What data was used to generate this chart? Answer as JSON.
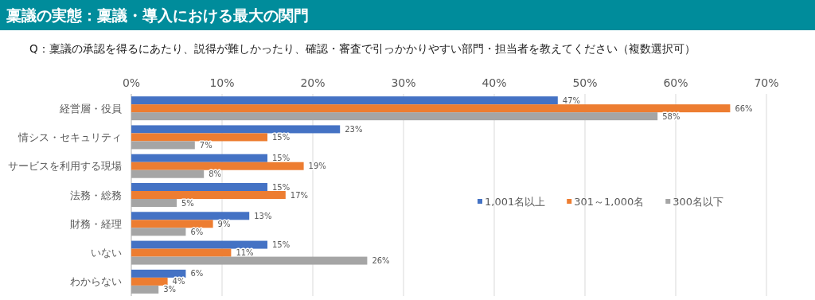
{
  "chart_data": {
    "type": "bar",
    "orientation": "horizontal",
    "title": "稟議の実態：稟議・導入における最大の関門",
    "subtitle": "Q：稟議の承認を得るにあたり、説得が難しかったり、確認・審査で引っかかりやすい部門・担当者を教えてください（複数選択可）",
    "categories": [
      "経営層・役員",
      "情シス・セキュリティ",
      "サービスを利用する現場",
      "法務・総務",
      "財務・経理",
      "いない",
      "わからない"
    ],
    "series": [
      {
        "name": "1,001名以上",
        "color": "#4472c4",
        "values": [
          47,
          23,
          15,
          15,
          13,
          15,
          6
        ],
        "value_labels": [
          "47%",
          "23%",
          "15%",
          "15%",
          "13%",
          "15%",
          "6%"
        ]
      },
      {
        "name": "301～1,000名",
        "color": "#ed7d31",
        "values": [
          66,
          15,
          19,
          17,
          9,
          11,
          4
        ],
        "value_labels": [
          "66%",
          "15%",
          "19%",
          "17%",
          "9%",
          "11%",
          "4%"
        ]
      },
      {
        "name": "300名以下",
        "color": "#a5a5a5",
        "values": [
          58,
          7,
          8,
          5,
          6,
          26,
          3
        ],
        "value_labels": [
          "58%",
          "7%",
          "8%",
          "5%",
          "6%",
          "26%",
          "3%"
        ]
      }
    ],
    "xlim": [
      0,
      70
    ],
    "xticks": [
      {
        "value": 0,
        "label": "0%"
      },
      {
        "value": 10,
        "label": "10%"
      },
      {
        "value": 20,
        "label": "20%"
      },
      {
        "value": 30,
        "label": "30%"
      },
      {
        "value": 40,
        "label": "40%"
      },
      {
        "value": 50,
        "label": "50%"
      },
      {
        "value": 60,
        "label": "60%"
      },
      {
        "value": 70,
        "label": "70%"
      }
    ],
    "grid": "x",
    "legend": "right"
  }
}
